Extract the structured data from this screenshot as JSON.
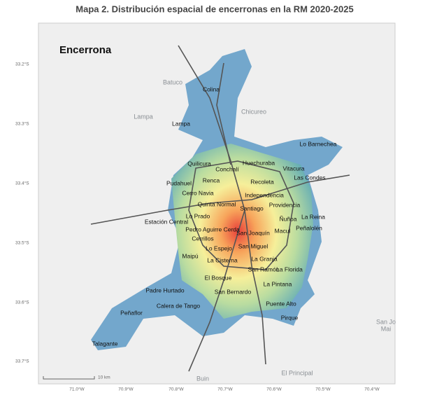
{
  "title": "Mapa 2. Distribución espacial de encerronas en la RM 2020-2025",
  "map": {
    "label": "Encerrona",
    "lat_labels": [
      "33.2°S",
      "33.3°S",
      "33.4°S",
      "33.5°S",
      "33.6°S",
      "33.7°S"
    ],
    "lon_labels": [
      "71.0°W",
      "70.9°W",
      "70.8°W",
      "70.7°W",
      "70.6°W",
      "70.5°W",
      "70.4°W"
    ],
    "scale": "10 km",
    "background_places": [
      "Batuco",
      "Chicureo",
      "Lampa",
      "San Jo",
      "Mai",
      "El Principal",
      "Buin"
    ],
    "places": [
      "Colina",
      "Lampa",
      "Lo Barnechea",
      "Quilicura",
      "Huechuraba",
      "Conchalí",
      "Vitacura",
      "Las Condes",
      "Pudahuel",
      "Renca",
      "Recoleta",
      "Cerro Navia",
      "Independencia",
      "Providencia",
      "Quinta Normal",
      "Santiago",
      "La Reina",
      "Lo Prado",
      "Estación Central",
      "Ñuñoa",
      "Macul",
      "Peñalolén",
      "Pedro Aguirre Cerda",
      "San Joaquín",
      "Cerrillos",
      "Lo Espejo",
      "San Miguel",
      "Maipú",
      "La Cisterna",
      "La Granja",
      "San Ramón",
      "La Florida",
      "El Bosque",
      "La Pintana",
      "San Bernardo",
      "Padre Hurtado",
      "Calera de Tango",
      "Puente Alto",
      "Peñaflor",
      "Pirque",
      "Talagante"
    ]
  }
}
